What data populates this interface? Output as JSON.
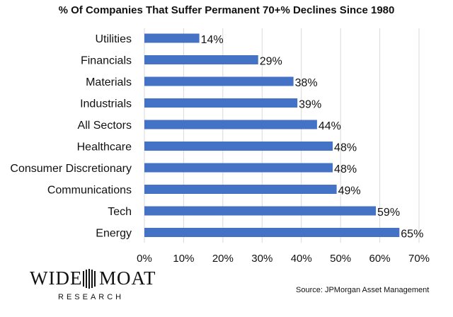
{
  "chart_data": {
    "type": "bar",
    "orientation": "horizontal",
    "title": "% Of Companies That Suffer Permanent 70+% Declines Since 1980",
    "categories": [
      "Utilities",
      "Financials",
      "Materials",
      "Industrials",
      "All Sectors",
      "Healthcare",
      "Consumer Discretionary",
      "Communications",
      "Tech",
      "Energy"
    ],
    "values": [
      14,
      29,
      38,
      39,
      44,
      48,
      48,
      49,
      59,
      65
    ],
    "value_labels": [
      "14%",
      "29%",
      "38%",
      "39%",
      "44%",
      "48%",
      "48%",
      "49%",
      "59%",
      "65%"
    ],
    "xlim": [
      0,
      70
    ],
    "x_ticks": [
      "0%",
      "10%",
      "20%",
      "30%",
      "40%",
      "50%",
      "60%",
      "70%"
    ],
    "xlabel": "",
    "ylabel": "",
    "grid": true,
    "bar_color": "#4472c4"
  },
  "logo": {
    "line1_left": "WIDE",
    "line1_right": "MOAT",
    "line2": "RESEARCH"
  },
  "source": "Source: JPMorgan Asset Management"
}
